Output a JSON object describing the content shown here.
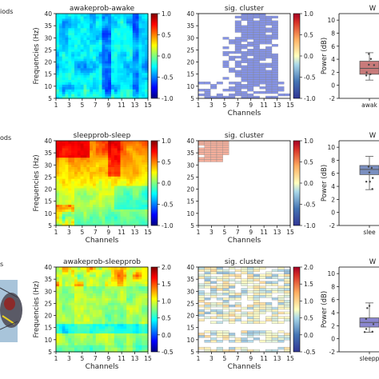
{
  "left_labels": [
    "iods",
    "ods",
    "s"
  ],
  "rows": [
    {
      "heatmap": {
        "title": "awakeprob-awake",
        "ylabel": "Frequencies (Hz)",
        "xlabel": "",
        "cmin": -1.0,
        "cmax": 1.0,
        "cbar_ticks": [
          "1.0",
          "0.5",
          "0.0",
          "-0.5",
          "-1.0"
        ],
        "cbar_tick_values": [
          1.0,
          0.5,
          0.0,
          -0.5,
          -1.0
        ],
        "pattern": "awake"
      },
      "cluster": {
        "title": "sig. cluster",
        "xlabel": "Channels",
        "cbar_ticks": [
          "1.0",
          "0.5",
          "0.0",
          "-0.5",
          "-1.0"
        ],
        "cbar_tick_values": [
          1.0,
          0.5,
          0.0,
          -0.5,
          -1.0
        ],
        "pattern": "awake"
      },
      "box": {
        "title": "W",
        "ylabel": "Power (dB)",
        "xtick": "awak",
        "yticks": [
          "10",
          "8",
          "6",
          "4",
          "2",
          "0",
          "-2"
        ],
        "ytick_values": [
          10,
          8,
          6,
          4,
          2,
          0,
          -2
        ],
        "ylim": [
          -2,
          11
        ],
        "color": "#c87a7a",
        "q1": 1.7,
        "median": 2.6,
        "q3": 3.7,
        "whisker_low": 0.8,
        "whisker_high": 5.0
      }
    },
    {
      "heatmap": {
        "title": "sleepprob-sleep",
        "ylabel": "Frequencies (Hz)",
        "xlabel": "Channels",
        "cmin": -1.0,
        "cmax": 1.0,
        "cbar_ticks": [
          "1.0",
          "0.5",
          "0.0",
          "-0.5",
          "-1.0"
        ],
        "cbar_tick_values": [
          1.0,
          0.5,
          0.0,
          -0.5,
          -1.0
        ],
        "pattern": "sleep"
      },
      "cluster": {
        "title": "sig. cluster",
        "xlabel": "Channels",
        "cbar_ticks": [
          "1.0",
          "0.5",
          "0.0",
          "-0.5",
          "-1.0"
        ],
        "cbar_tick_values": [
          1.0,
          0.5,
          0.0,
          -0.5,
          -1.0
        ],
        "pattern": "sleep"
      },
      "box": {
        "title": "W",
        "ylabel": "Power (dB)",
        "xtick": "slee",
        "yticks": [
          "10",
          "8",
          "6",
          "4",
          "2",
          "0",
          "-2"
        ],
        "ytick_values": [
          10,
          8,
          6,
          4,
          2,
          0,
          -2
        ],
        "ylim": [
          -2,
          11
        ],
        "color": "#7a8fc0",
        "q1": 5.8,
        "median": 6.6,
        "q3": 7.2,
        "whisker_low": 3.5,
        "whisker_high": 8.6
      }
    },
    {
      "heatmap": {
        "title": "awakeprob-sleepprob",
        "ylabel": "Frequencies (Hz)",
        "xlabel": "Channels",
        "cmin": -0.5,
        "cmax": 2.0,
        "cbar_ticks": [
          "2.0",
          "1.5",
          "1.0",
          "0.5",
          "0.0",
          "-0.5"
        ],
        "cbar_tick_values": [
          2.0,
          1.5,
          1.0,
          0.5,
          0.0,
          -0.5
        ],
        "pattern": "diff"
      },
      "cluster": {
        "title": "sig. cluster",
        "xlabel": "Channels",
        "cbar_ticks": [
          "2.0",
          "1.5",
          "1.0",
          "0.5",
          "0.0",
          "-0.5"
        ],
        "cbar_tick_values": [
          2.0,
          1.5,
          1.0,
          0.5,
          0.0,
          -0.5
        ],
        "pattern": "diff"
      },
      "box": {
        "title": "W",
        "ylabel": "Power (dB)",
        "xtick": "sleepp",
        "yticks": [
          "10",
          "8",
          "6",
          "4",
          "2",
          "0",
          "-2"
        ],
        "ytick_values": [
          10,
          8,
          6,
          4,
          2,
          0,
          -2
        ],
        "ylim": [
          -2,
          11
        ],
        "color": "#8a86d0",
        "q1": 1.8,
        "median": 2.5,
        "q3": 3.2,
        "whisker_low": 1.0,
        "whisker_high": 5.5
      }
    }
  ],
  "chart_data": {
    "type": "heatmap",
    "x_ticks": [
      "1",
      "3",
      "5",
      "7",
      "9",
      "11",
      "13",
      "15"
    ],
    "x_tick_values": [
      1,
      3,
      5,
      7,
      9,
      11,
      13,
      15
    ],
    "y_ticks": [
      "40",
      "35",
      "30",
      "25",
      "20",
      "15",
      "10",
      "5"
    ],
    "y_tick_values": [
      40,
      35,
      30,
      25,
      20,
      15,
      10,
      5
    ],
    "xlim": [
      1,
      15
    ],
    "ylim": [
      5,
      40
    ],
    "colormap": "jet",
    "colors": {
      "cluster_awake": "#6f7fe0",
      "cluster_sleep": "#f2a08a",
      "box_edge": "#555555"
    }
  }
}
